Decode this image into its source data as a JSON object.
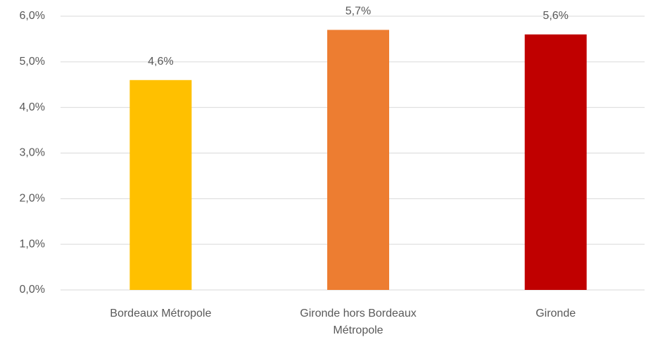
{
  "chart_data": {
    "type": "bar",
    "categories": [
      "Bordeaux Métropole",
      "Gironde hors Bordeaux Métropole",
      "Gironde"
    ],
    "values": [
      4.6,
      5.7,
      5.6
    ],
    "value_labels": [
      "4,6%",
      "5,7%",
      "5,6%"
    ],
    "colors": [
      "#ffc000",
      "#ed7d31",
      "#c00000"
    ],
    "ylim": [
      0,
      6
    ],
    "yticks": [
      {
        "value": 0,
        "label": "0,0%"
      },
      {
        "value": 1,
        "label": "1,0%"
      },
      {
        "value": 2,
        "label": "2,0%"
      },
      {
        "value": 3,
        "label": "3,0%"
      },
      {
        "value": 4,
        "label": "4,0%"
      },
      {
        "value": 5,
        "label": "5,0%"
      },
      {
        "value": 6,
        "label": "6,0%"
      }
    ],
    "grid": true
  }
}
